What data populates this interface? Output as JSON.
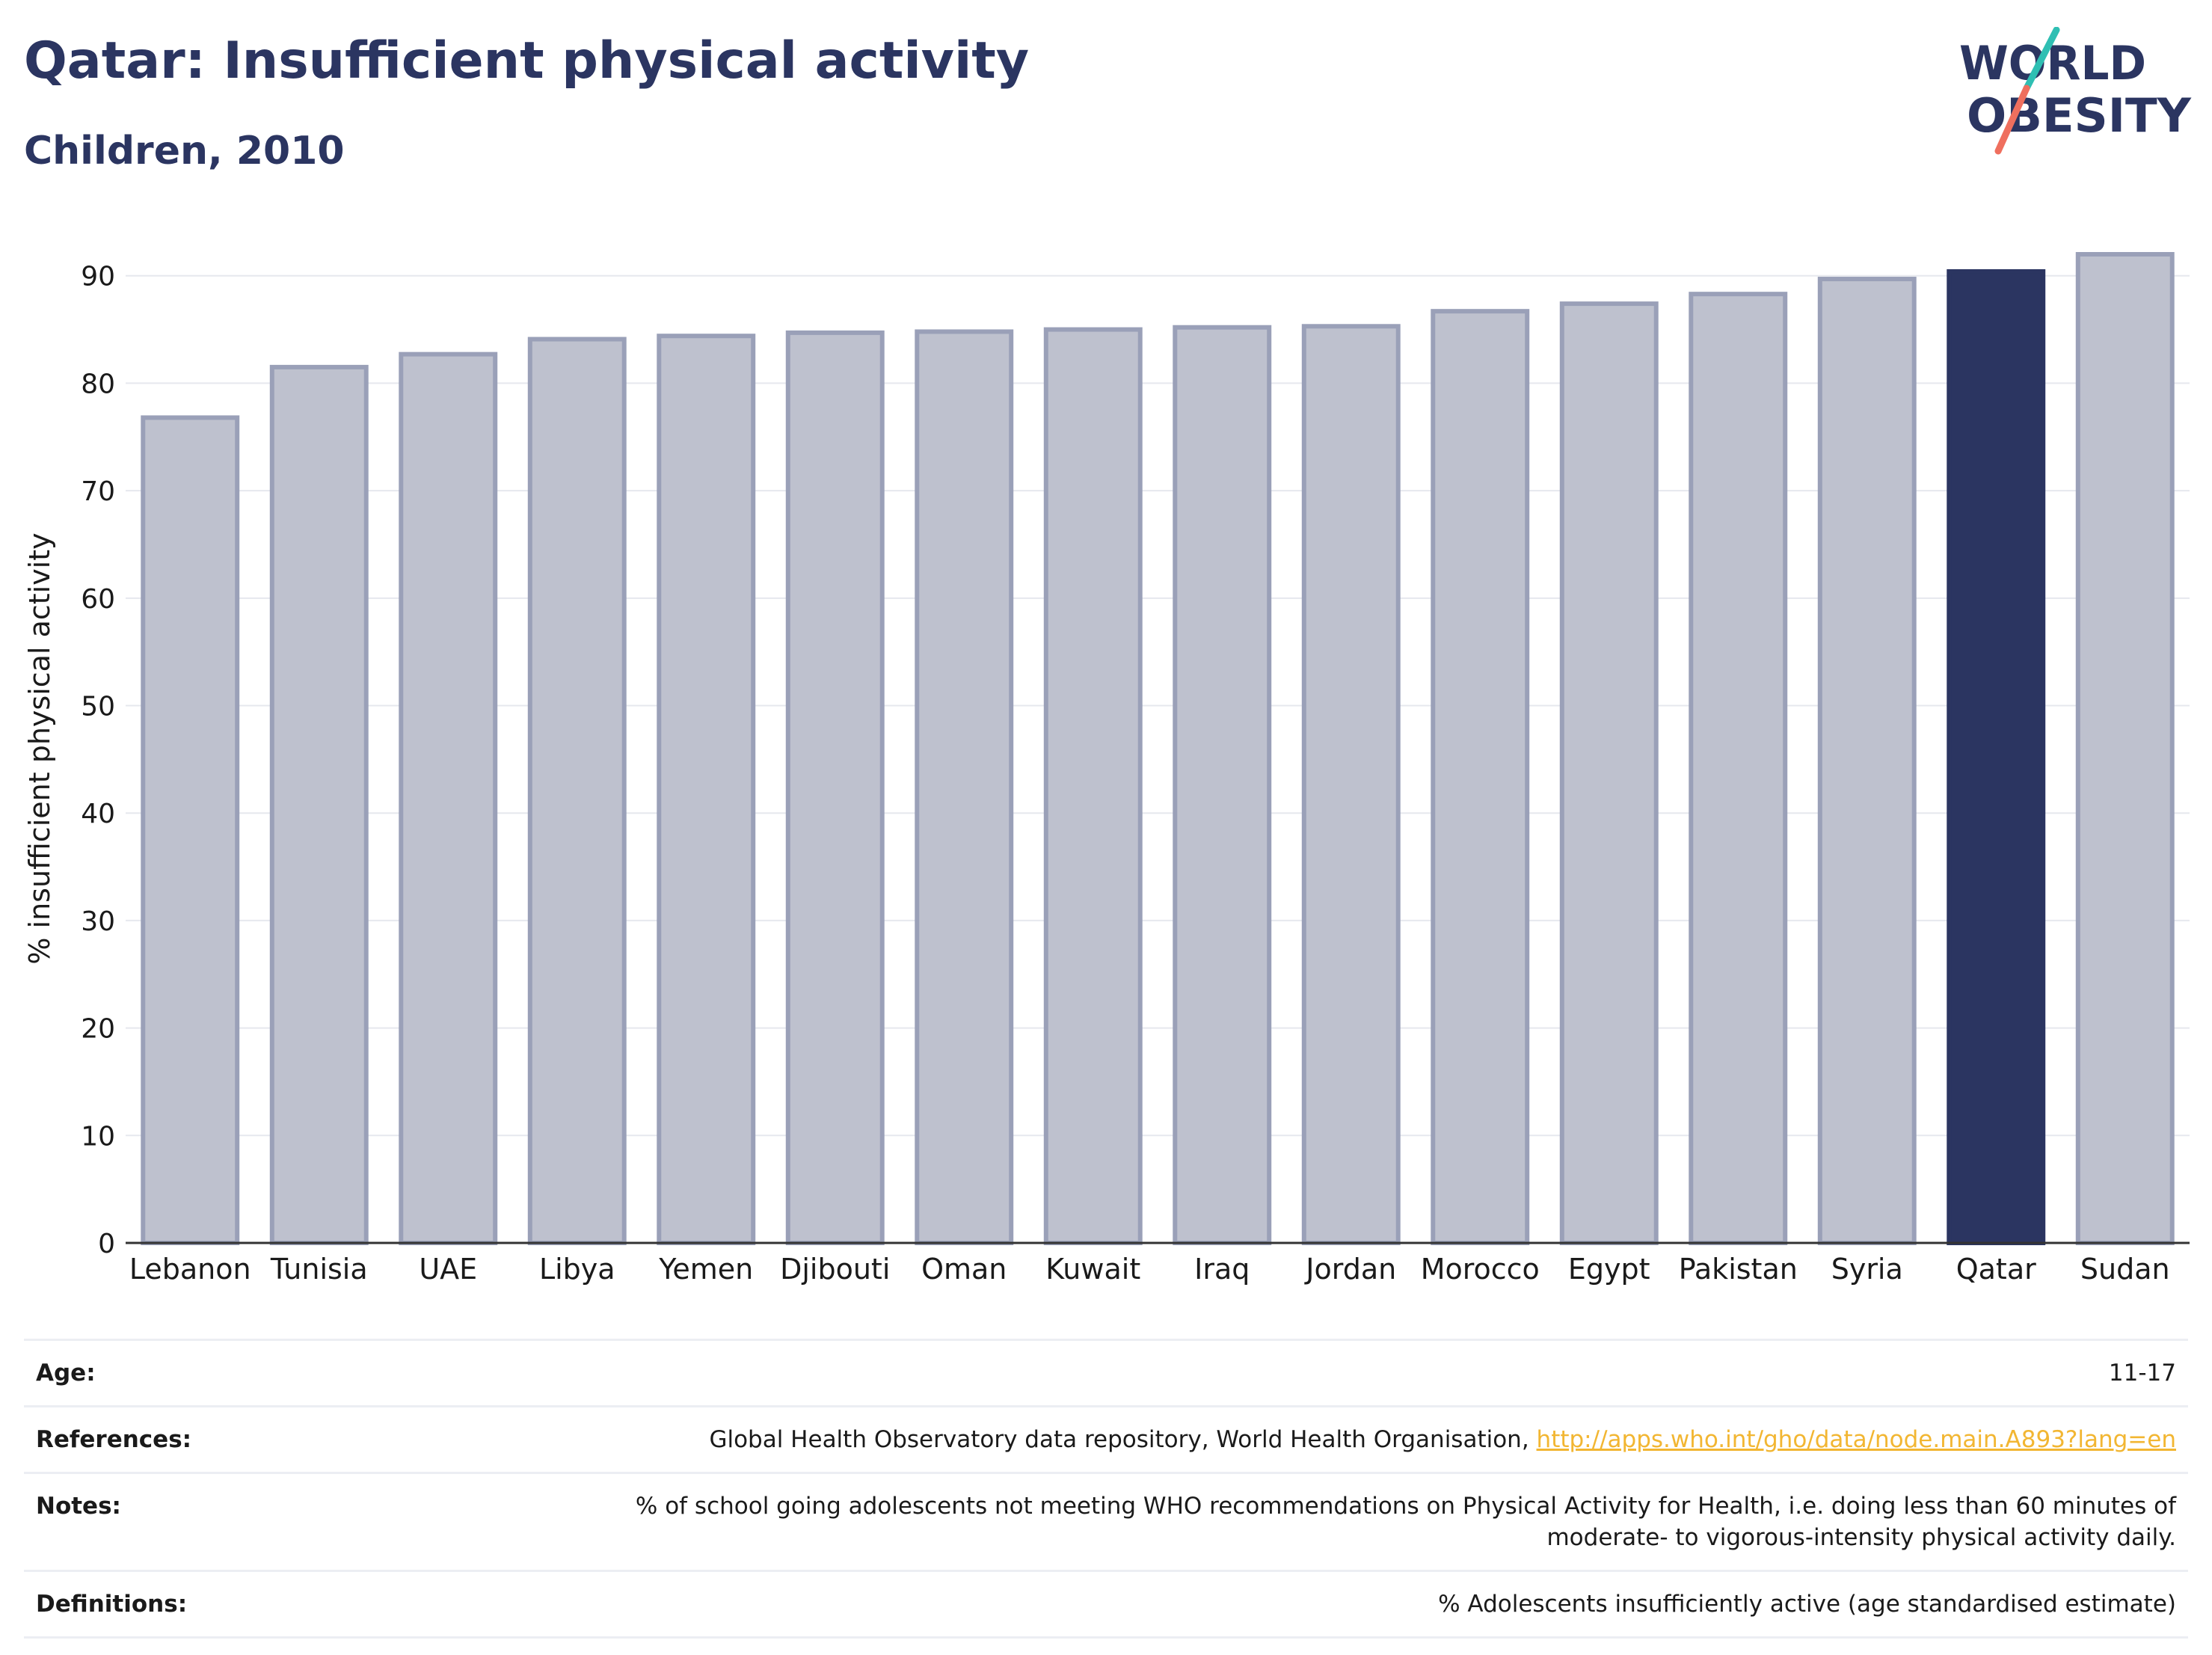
{
  "header": {
    "title": "Qatar: Insufficient physical activity",
    "subtitle": "Children, 2010"
  },
  "logo": {
    "line1": "WORLD",
    "line2": "OBESITY"
  },
  "colors": {
    "highlight": "#2b3561",
    "bar": "#bec1ce",
    "bar_edge": "#9aa0b8",
    "link": "#f2b632",
    "logo_teal": "#2fbfb3",
    "logo_coral": "#ef6f5e"
  },
  "chart_data": {
    "type": "bar",
    "categories": [
      "Lebanon",
      "Tunisia",
      "UAE",
      "Libya",
      "Yemen",
      "Djibouti",
      "Oman",
      "Kuwait",
      "Iraq",
      "Jordan",
      "Morocco",
      "Egypt",
      "Pakistan",
      "Syria",
      "Qatar",
      "Sudan"
    ],
    "values": [
      76.8,
      81.5,
      82.7,
      84.1,
      84.4,
      84.7,
      84.8,
      85.0,
      85.2,
      85.3,
      86.7,
      87.4,
      88.3,
      89.7,
      90.4,
      92.0
    ],
    "highlight": "Qatar",
    "ylabel": "% insufficient physical activity",
    "ylim": [
      0,
      92
    ],
    "yticks": [
      0,
      10,
      20,
      30,
      40,
      50,
      60,
      70,
      80,
      90
    ],
    "grid": true
  },
  "info": {
    "age": {
      "label": "Age:",
      "value": "11-17"
    },
    "references": {
      "label": "References:",
      "text": "Global Health Observatory data repository, World Health Organisation, ",
      "link": "http://apps.who.int/gho/data/node.main.A893?lang=en"
    },
    "notes": {
      "label": "Notes:",
      "line1": "% of school going adolescents not meeting WHO recommendations on Physical Activity for Health, i.e. doing less than 60 minutes of",
      "line2": "moderate- to vigorous-intensity physical activity daily."
    },
    "definitions": {
      "label": "Definitions:",
      "value": "% Adolescents insufficiently active (age standardised estimate)"
    }
  }
}
